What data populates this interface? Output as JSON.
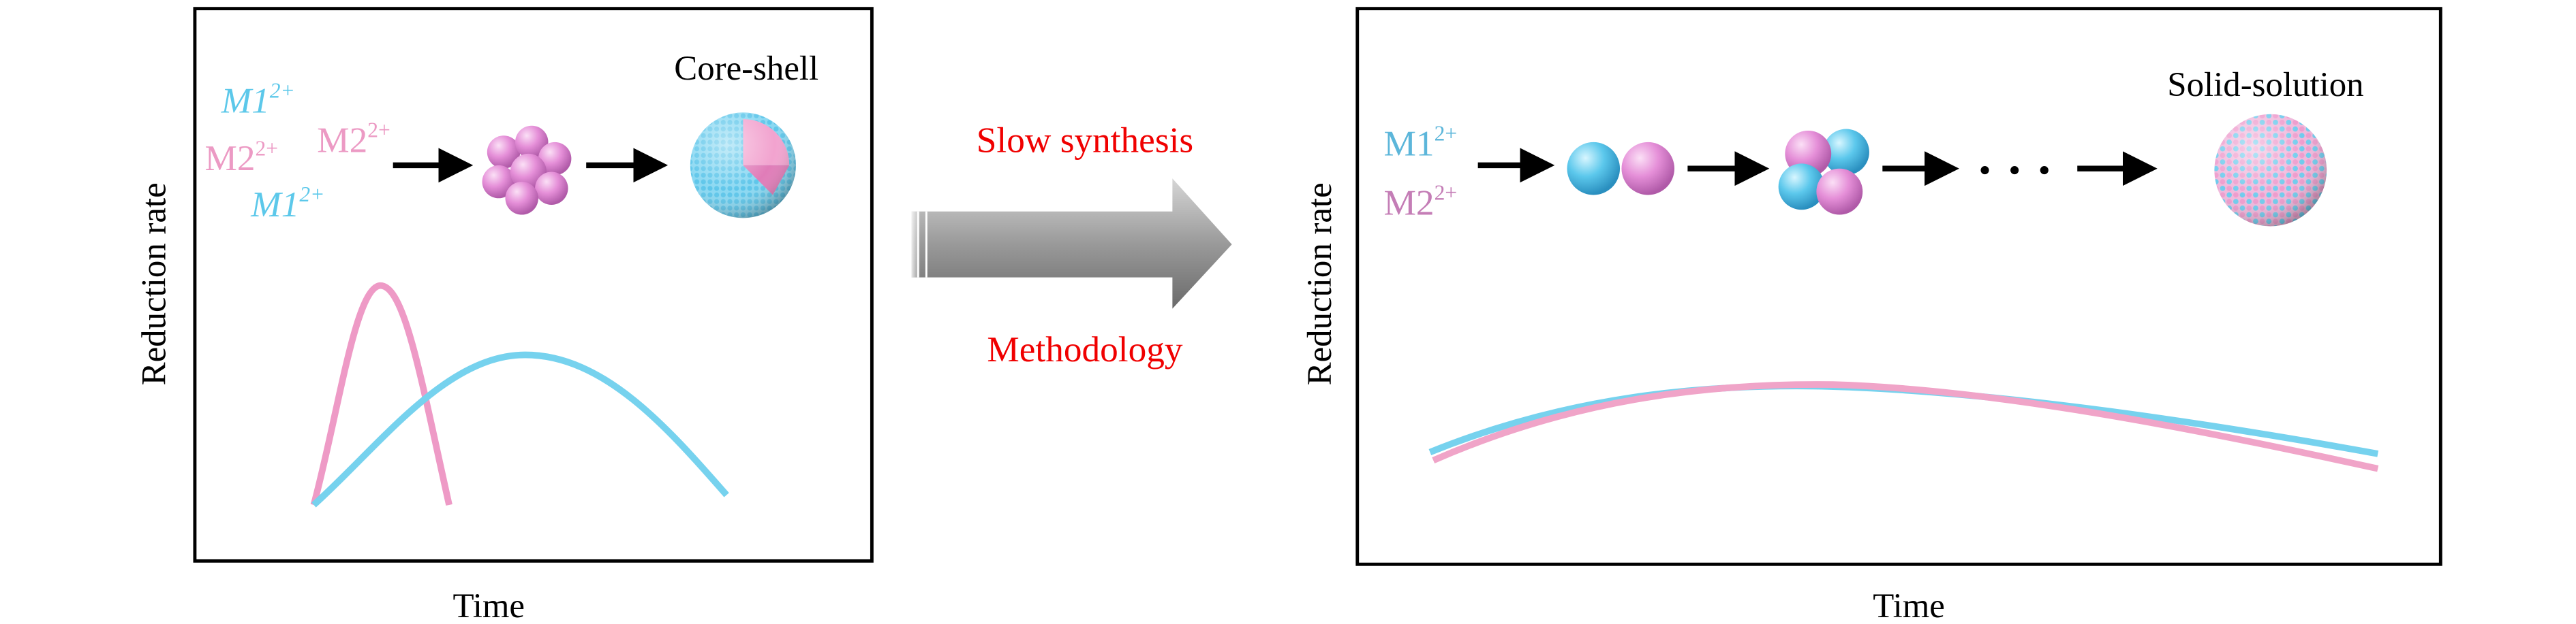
{
  "left_panel": {
    "title": "Core-shell",
    "y_label": "Reduction rate",
    "x_label": "Time",
    "ions": [
      {
        "symbol": "M1",
        "charge": "2+"
      },
      {
        "symbol": "M2",
        "charge": "2+"
      },
      {
        "symbol": "M2",
        "charge": "2+"
      },
      {
        "symbol": "M1",
        "charge": "2+"
      }
    ]
  },
  "middle": {
    "top_label": "Slow synthesis",
    "bottom_label": "Methodology"
  },
  "right_panel": {
    "title": "Solid-solution",
    "y_label": "Reduction rate",
    "x_label": "Time",
    "ions": [
      {
        "symbol": "M1",
        "charge": "2+"
      },
      {
        "symbol": "M2",
        "charge": "2+"
      }
    ]
  }
}
